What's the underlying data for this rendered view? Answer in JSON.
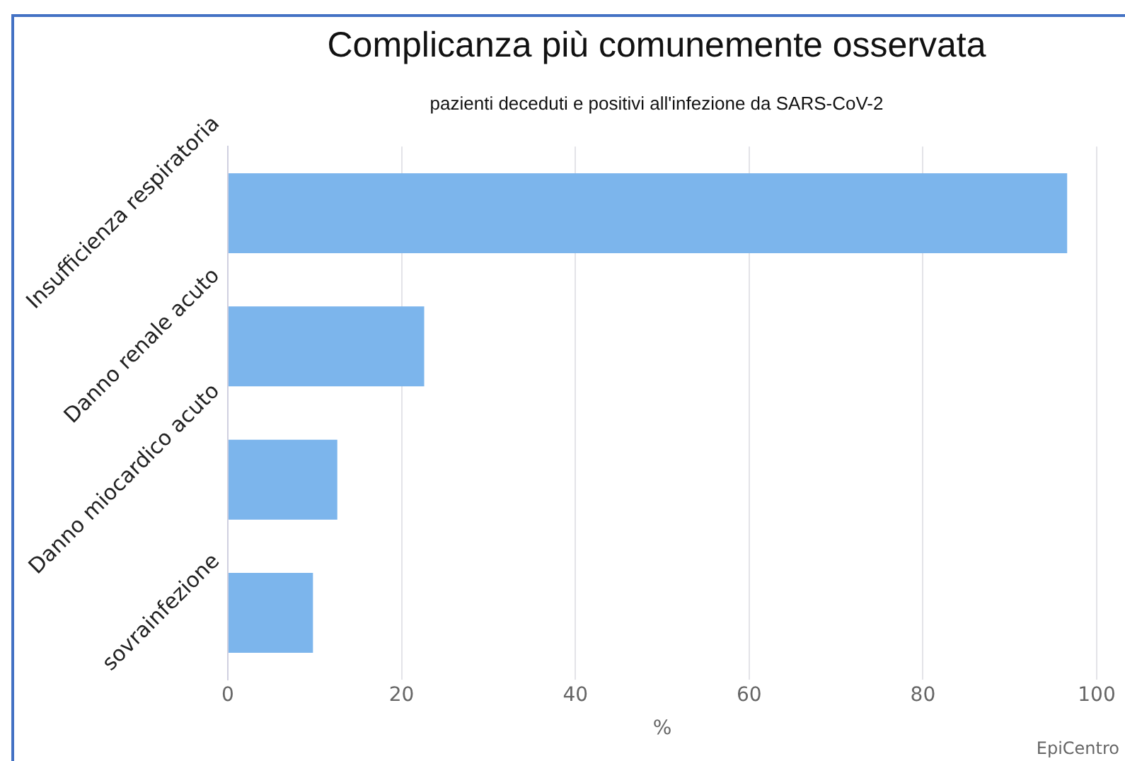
{
  "chart_data": {
    "type": "bar",
    "orientation": "horizontal",
    "title": "Complicanza più comunemente osservata",
    "subtitle": "pazienti deceduti e positivi all'infezione da SARS-CoV-2",
    "xlabel": "%",
    "categories": [
      "Insufficienza respiratoria",
      "Danno renale acuto",
      "Danno miocardico acuto",
      "sovrainfezione"
    ],
    "values": [
      96.6,
      22.6,
      12.6,
      9.8
    ],
    "color": "#7cb5ec",
    "xlim": [
      0,
      100
    ],
    "xticks": [
      0,
      20,
      40,
      60,
      80,
      100
    ],
    "grid": "x",
    "annotations": [
      "EpiCentro"
    ]
  }
}
